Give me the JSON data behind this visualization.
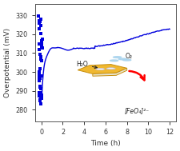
{
  "title": "",
  "xlabel": "Time (h)",
  "ylabel": "Overpotential (mV)",
  "xlim": [
    -0.6,
    12.6
  ],
  "ylim": [
    274,
    336
  ],
  "xticks": [
    0,
    2,
    4,
    6,
    8,
    10,
    12
  ],
  "yticks": [
    280,
    290,
    300,
    310,
    320,
    330
  ],
  "line_color": "#0000dd",
  "marker_color": "#0000dd",
  "bg_color": "#ffffff",
  "inset_label_h2o": "H₂O",
  "inset_label_o2": "O₂",
  "inset_label_feo4": "[FeO₄]²⁻",
  "figsize": [
    2.25,
    1.89
  ],
  "dpi": 100
}
